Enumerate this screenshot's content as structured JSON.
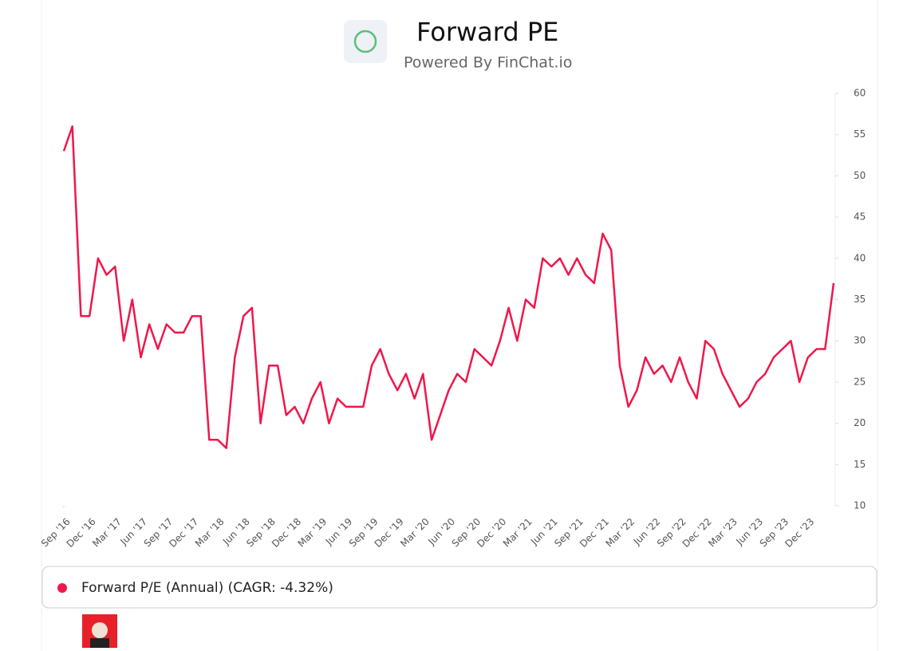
{
  "chart_data": {
    "type": "line",
    "title": "Forward PE",
    "subtitle": "Powered By FinChat.io",
    "categories": [
      "Sep '16",
      null,
      null,
      "Dec '16",
      null,
      null,
      "Mar '17",
      null,
      null,
      "Jun '17",
      null,
      null,
      "Sep '17",
      null,
      null,
      "Dec '17",
      null,
      null,
      "Mar '18",
      null,
      null,
      "Jun '18",
      null,
      null,
      "Sep '18",
      null,
      null,
      "Dec '18",
      null,
      null,
      "Mar '19",
      null,
      null,
      "Jun '19",
      null,
      null,
      "Sep '19",
      null,
      null,
      "Dec '19",
      null,
      null,
      "Mar '20",
      null,
      null,
      "Jun '20",
      null,
      null,
      "Sep '20",
      null,
      null,
      "Dec '20",
      null,
      null,
      "Mar '21",
      null,
      null,
      "Jun '21",
      null,
      null,
      "Sep '21",
      null,
      null,
      "Dec '21",
      null,
      null,
      "Mar '22",
      null,
      null,
      "Jun '22",
      null,
      null,
      "Sep '22",
      null,
      null,
      "Dec '22",
      null,
      null,
      "Mar '23",
      null,
      null,
      "Jun '23",
      null,
      null,
      "Sep '23",
      null,
      null,
      "Dec '23",
      null,
      null,
      null
    ],
    "series": [
      {
        "name": "Forward P/E (Annual) (CAGR: -4.32%)",
        "color": "#f0174a",
        "values": [
          53,
          56,
          33,
          33,
          40,
          38,
          39,
          30,
          35,
          28,
          32,
          29,
          32,
          31,
          31,
          33,
          33,
          18,
          18,
          17,
          28,
          33,
          34,
          20,
          27,
          27,
          21,
          22,
          20,
          23,
          25,
          20,
          23,
          22,
          22,
          22,
          27,
          29,
          26,
          24,
          26,
          23,
          26,
          18,
          21,
          24,
          26,
          25,
          29,
          28,
          27,
          30,
          34,
          30,
          35,
          34,
          40,
          39,
          40,
          38,
          40,
          38,
          37,
          43,
          41,
          27,
          22,
          24,
          28,
          26,
          27,
          25,
          28,
          25,
          23,
          30,
          29,
          26,
          24,
          22,
          23,
          25,
          26,
          28,
          29,
          30,
          25,
          28,
          29,
          29,
          37
        ]
      }
    ],
    "ylim": [
      10,
      60
    ],
    "yticks": [
      10,
      15,
      20,
      25,
      30,
      35,
      40,
      45,
      50,
      55,
      60
    ]
  }
}
